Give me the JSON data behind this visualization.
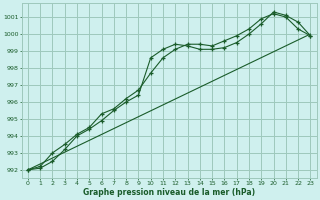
{
  "background_color": "#cff0ee",
  "grid_color": "#9ec8bc",
  "line_color": "#1a5c2a",
  "xlabel": "Graphe pression niveau de la mer (hPa)",
  "xlim": [
    -0.5,
    23.5
  ],
  "ylim": [
    991.5,
    1001.8
  ],
  "yticks": [
    992,
    993,
    994,
    995,
    996,
    997,
    998,
    999,
    1000,
    1001
  ],
  "xticks": [
    0,
    1,
    2,
    3,
    4,
    5,
    6,
    7,
    8,
    9,
    10,
    11,
    12,
    13,
    14,
    15,
    16,
    17,
    18,
    19,
    20,
    21,
    22,
    23
  ],
  "line1_x": [
    0,
    1,
    2,
    3,
    4,
    5,
    6,
    7,
    8,
    9,
    10,
    11,
    12,
    13,
    14,
    15,
    16,
    17,
    18,
    19,
    20,
    21,
    22,
    23
  ],
  "line1_y": [
    992.0,
    992.1,
    992.5,
    993.2,
    994.0,
    994.4,
    994.9,
    995.5,
    996.0,
    996.4,
    998.6,
    999.1,
    999.4,
    999.3,
    999.1,
    999.1,
    999.2,
    999.5,
    1000.0,
    1000.6,
    1001.3,
    1001.1,
    1000.7,
    999.9
  ],
  "line2_x": [
    0,
    1,
    2,
    3,
    4,
    5,
    6,
    7,
    8,
    9,
    10,
    11,
    12,
    13,
    14,
    15,
    16,
    17,
    18,
    19,
    20,
    21,
    22,
    23
  ],
  "line2_y": [
    992.0,
    992.2,
    993.0,
    993.5,
    994.1,
    994.5,
    995.3,
    995.6,
    996.2,
    996.7,
    997.7,
    998.6,
    999.1,
    999.4,
    999.4,
    999.3,
    999.6,
    999.9,
    1000.3,
    1000.9,
    1001.2,
    1001.0,
    1000.3,
    999.9
  ],
  "line3_x": [
    0,
    23
  ],
  "line3_y": [
    992.0,
    1000.0
  ]
}
